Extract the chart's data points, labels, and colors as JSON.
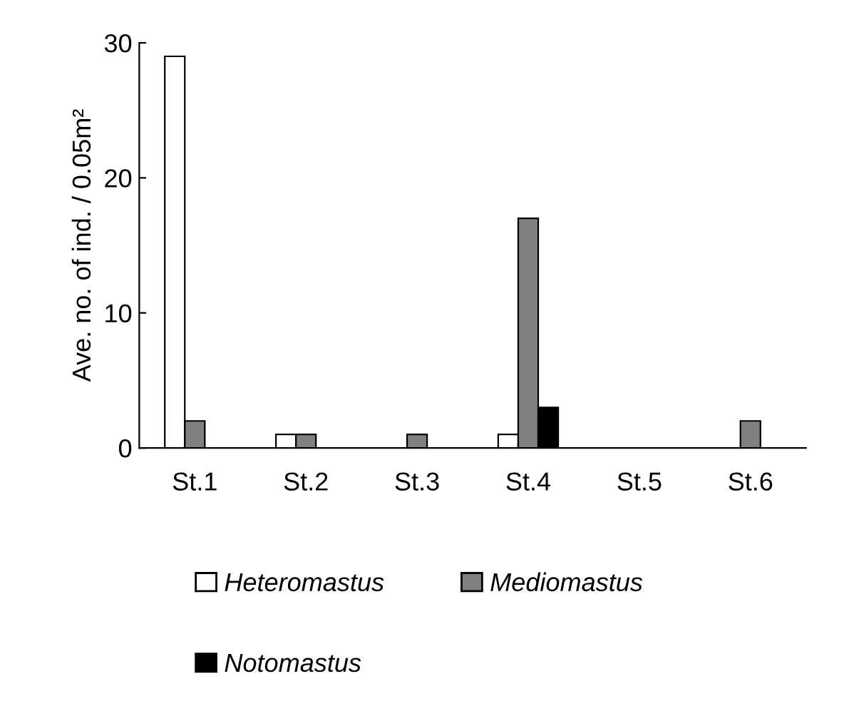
{
  "chart_data": {
    "type": "bar",
    "ylabel": "Ave. no. of ind. / 0.05m²",
    "categories": [
      "St.1",
      "St.2",
      "St.3",
      "St.4",
      "St.5",
      "St.6"
    ],
    "series": [
      {
        "name": "Heteromastus",
        "color": "#ffffff",
        "values": [
          29,
          1,
          0,
          1,
          0,
          0
        ]
      },
      {
        "name": "Mediomastus",
        "color": "#808080",
        "values": [
          2,
          1,
          1,
          17,
          0,
          2
        ]
      },
      {
        "name": "Notomastus",
        "color": "#000000",
        "values": [
          0,
          0,
          0,
          3,
          0,
          0
        ]
      }
    ],
    "ylim": [
      0,
      30
    ],
    "yticks": [
      0,
      10,
      20,
      30
    ],
    "grid": false,
    "legend": "bottom"
  }
}
